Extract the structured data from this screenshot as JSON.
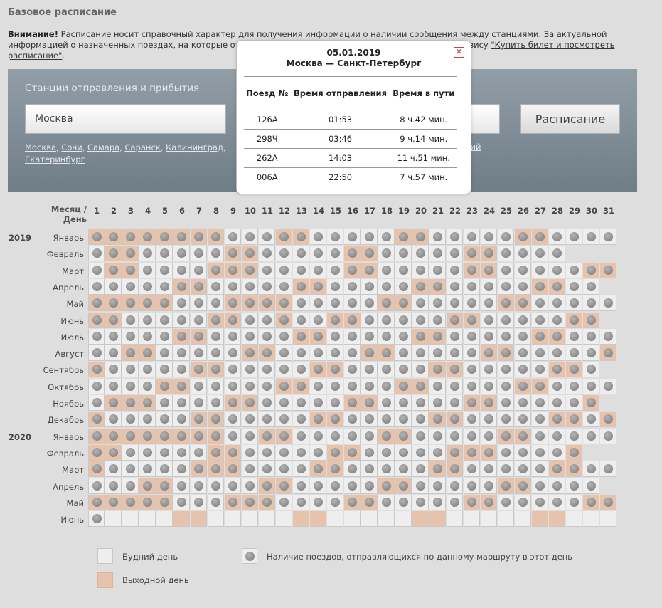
{
  "page": {
    "title": "Базовое расписание",
    "notice_bold": "Внимание!",
    "notice_text_1": " Расписание носит справочный характер для получения информации о наличии сообщения между станциями. За актуальной информацией о назначенных поездах, на которые отп",
    "notice_text_2": "ервису ",
    "notice_link": "\"Купить билет и посмотреть расписание\"",
    "notice_end": "."
  },
  "search": {
    "stations_label": "Станции отправления и прибытия",
    "from_value": "Москва",
    "schedule_button": "Расписание",
    "city_links": [
      "Москва",
      "Сочи",
      "Самара",
      "Саранск",
      "Калининград",
      "Екатеринбург"
    ],
    "city_links_right": "кний"
  },
  "calendar": {
    "header_month_day": "Месяц / День",
    "days": [
      "1",
      "2",
      "3",
      "4",
      "5",
      "6",
      "7",
      "8",
      "9",
      "10",
      "11",
      "12",
      "13",
      "14",
      "15",
      "16",
      "17",
      "18",
      "19",
      "20",
      "21",
      "22",
      "23",
      "24",
      "25",
      "26",
      "27",
      "28",
      "29",
      "30",
      "31"
    ],
    "years": [
      {
        "label": "2019",
        "row": 0
      },
      {
        "label": "2020",
        "row": 12
      }
    ],
    "months": [
      {
        "name": "Январь",
        "days": 31,
        "weekends": [
          1,
          2,
          3,
          4,
          5,
          6,
          7,
          8,
          12,
          13,
          19,
          20,
          26,
          27
        ],
        "trains": 31
      },
      {
        "name": "Февраль",
        "days": 28,
        "weekends": [
          2,
          3,
          9,
          10,
          16,
          17,
          23,
          24
        ],
        "trains": 28
      },
      {
        "name": "Март",
        "days": 31,
        "weekends": [
          2,
          3,
          8,
          9,
          10,
          16,
          17,
          23,
          24,
          30,
          31
        ],
        "trains": 31
      },
      {
        "name": "Апрель",
        "days": 30,
        "weekends": [
          6,
          7,
          13,
          14,
          20,
          21,
          27,
          28
        ],
        "trains": 30
      },
      {
        "name": "Май",
        "days": 31,
        "weekends": [
          1,
          2,
          3,
          4,
          5,
          9,
          10,
          11,
          12,
          18,
          19,
          25,
          26
        ],
        "trains": 31
      },
      {
        "name": "Июнь",
        "days": 30,
        "weekends": [
          1,
          2,
          8,
          9,
          12,
          15,
          16,
          22,
          23,
          29,
          30
        ],
        "trains": 30
      },
      {
        "name": "Июль",
        "days": 31,
        "weekends": [
          6,
          7,
          13,
          14,
          20,
          21,
          27,
          28
        ],
        "trains": 31
      },
      {
        "name": "Август",
        "days": 31,
        "weekends": [
          3,
          4,
          10,
          11,
          17,
          18,
          24,
          25,
          31
        ],
        "trains": 31
      },
      {
        "name": "Сентябрь",
        "days": 30,
        "weekends": [
          1,
          7,
          8,
          14,
          15,
          21,
          22,
          28,
          29
        ],
        "trains": 30
      },
      {
        "name": "Октябрь",
        "days": 31,
        "weekends": [
          5,
          6,
          12,
          13,
          19,
          20,
          26,
          27
        ],
        "trains": 31
      },
      {
        "name": "Ноябрь",
        "days": 30,
        "weekends": [
          2,
          3,
          4,
          9,
          10,
          16,
          17,
          23,
          24,
          30
        ],
        "trains": 30
      },
      {
        "name": "Декабрь",
        "days": 31,
        "weekends": [
          1,
          7,
          8,
          14,
          15,
          21,
          22,
          28,
          29,
          31
        ],
        "trains": 31
      },
      {
        "name": "Январь",
        "days": 31,
        "weekends": [
          1,
          2,
          3,
          4,
          5,
          6,
          7,
          8,
          11,
          12,
          18,
          19,
          25,
          26
        ],
        "trains": 31
      },
      {
        "name": "Февраль",
        "days": 29,
        "weekends": [
          1,
          2,
          8,
          9,
          15,
          16,
          22,
          23,
          24,
          29
        ],
        "trains": 29
      },
      {
        "name": "Март",
        "days": 31,
        "weekends": [
          1,
          7,
          8,
          9,
          14,
          15,
          21,
          22,
          28,
          29
        ],
        "trains": 31
      },
      {
        "name": "Апрель",
        "days": 30,
        "weekends": [
          4,
          5,
          11,
          12,
          18,
          19,
          25,
          26
        ],
        "trains": 30
      },
      {
        "name": "Май",
        "days": 31,
        "weekends": [
          1,
          2,
          3,
          4,
          5,
          9,
          10,
          11,
          16,
          17,
          23,
          24,
          30,
          31
        ],
        "trains": 31
      },
      {
        "name": "Июнь",
        "days": 31,
        "weekends": [
          6,
          7,
          13,
          14,
          20,
          21,
          27,
          28
        ],
        "trains": 1
      }
    ]
  },
  "popup": {
    "date": "05.01.2019",
    "route": "Москва — Санкт-Петербург",
    "columns": [
      "Поезд №",
      "Время отправления",
      "Время в пути"
    ],
    "rows": [
      [
        "126А",
        "01:53",
        "8 ч.42 мин."
      ],
      [
        "298Ч",
        "03:46",
        "9 ч.14 мин."
      ],
      [
        "262А",
        "14:03",
        "11 ч.51 мин."
      ],
      [
        "006А",
        "22:50",
        "7 ч.57 мин."
      ]
    ]
  },
  "legend": {
    "weekday": "Будний день",
    "weekend": "Выходной день",
    "trains": "Наличие поездов, отправляющихся по данному маршруту в этот день"
  },
  "colors": {
    "weekend": "#e8c3ab",
    "weekday": "#eeeeee",
    "panel": "#7f8c95"
  }
}
